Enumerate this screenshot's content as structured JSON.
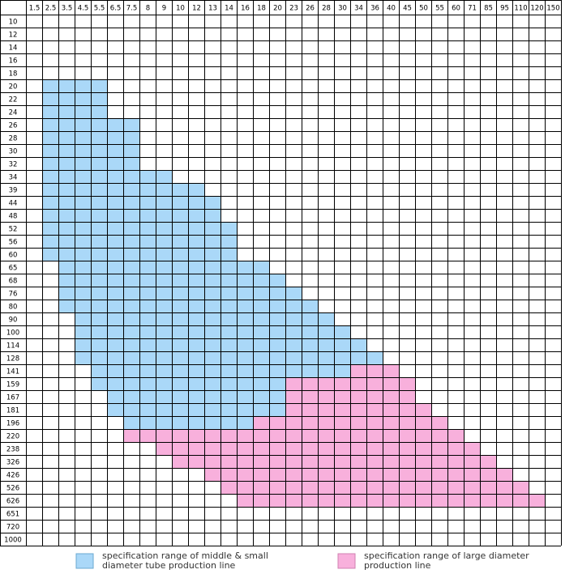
{
  "table": {
    "columns": [
      "1.5",
      "2.5",
      "3.5",
      "4.5",
      "5.5",
      "6.5",
      "7.5",
      "8",
      "9",
      "10",
      "12",
      "13",
      "14",
      "16",
      "18",
      "20",
      "23",
      "26",
      "28",
      "30",
      "34",
      "36",
      "40",
      "45",
      "50",
      "55",
      "60",
      "71",
      "85",
      "95",
      "110",
      "120",
      "150"
    ],
    "rows": [
      "10",
      "12",
      "14",
      "16",
      "18",
      "20",
      "22",
      "24",
      "26",
      "28",
      "30",
      "32",
      "34",
      "39",
      "44",
      "48",
      "52",
      "56",
      "60",
      "65",
      "68",
      "76",
      "80",
      "90",
      "100",
      "114",
      "128",
      "141",
      "159",
      "167",
      "181",
      "196",
      "220",
      "238",
      "326",
      "426",
      "526",
      "626",
      "651",
      "720",
      "1000"
    ]
  },
  "legend": [
    {
      "lines": [
        "specification range of middle & small",
        "diameter tube production line"
      ]
    },
    {
      "lines": [
        "specification range of large diameter",
        "production line"
      ]
    }
  ]
}
